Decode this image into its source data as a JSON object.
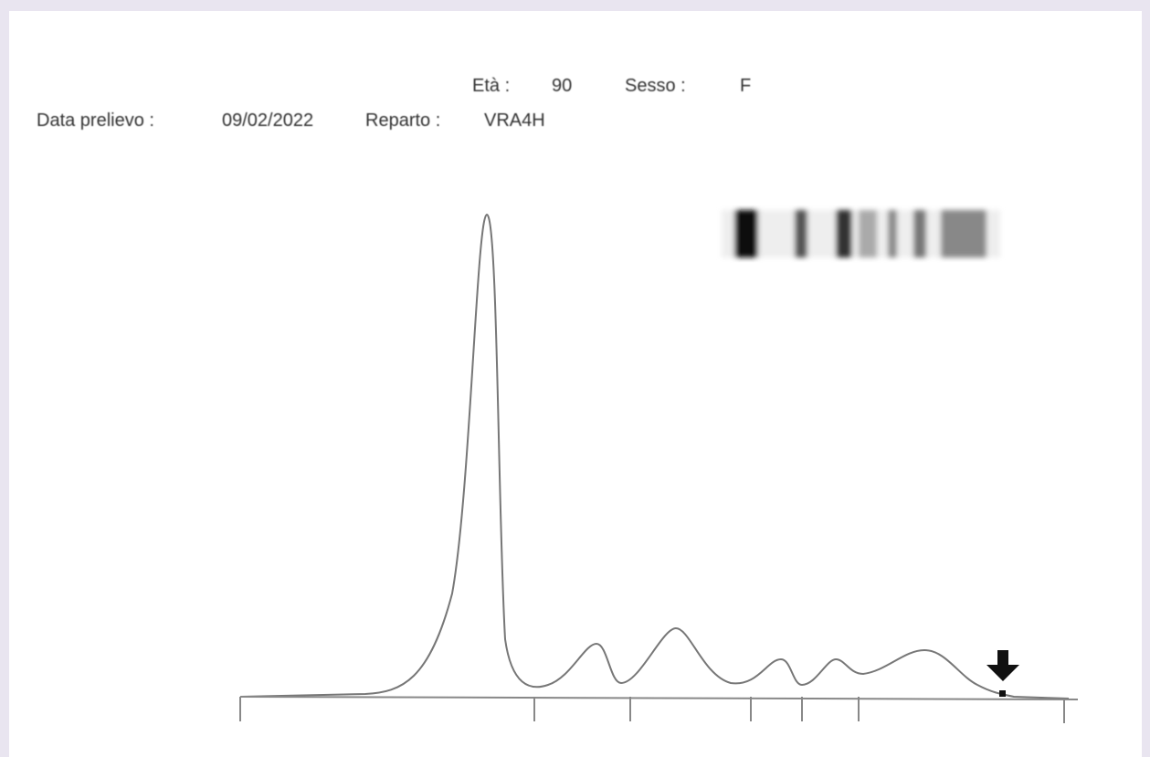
{
  "header": {
    "age_label": "Età :",
    "age": "90",
    "sex_label": "Sesso :",
    "sex": "F",
    "date_label": "Data prelievo :",
    "date": "09/02/2022",
    "ward_label": "Reparto :",
    "ward": "VRA4H"
  }
}
